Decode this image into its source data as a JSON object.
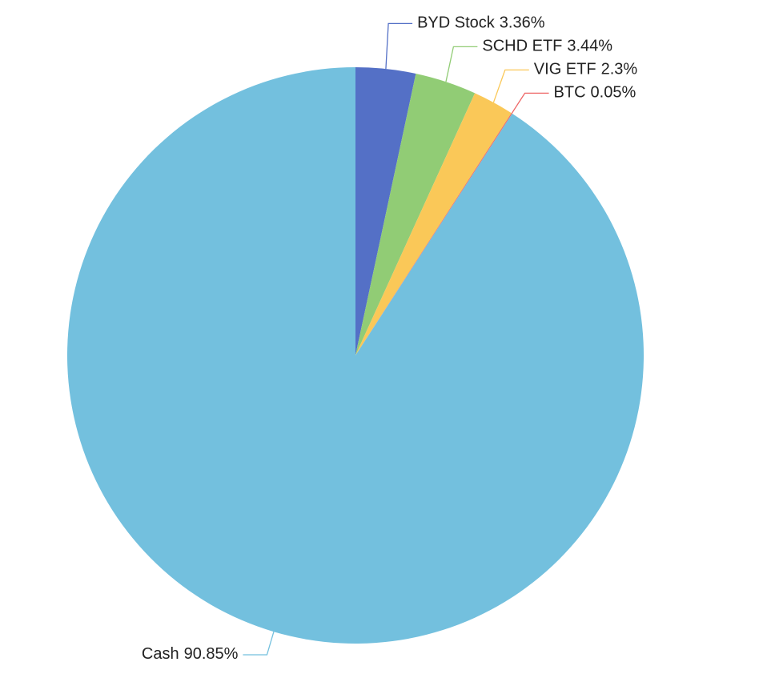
{
  "chart_data": {
    "type": "pie",
    "categories": [
      "BYD Stock",
      "SCHD ETF",
      "VIG ETF",
      "BTC",
      "Cash"
    ],
    "values": [
      3.36,
      3.44,
      2.3,
      0.05,
      90.85
    ],
    "value_labels": [
      "3.36%",
      "3.44%",
      "2.3%",
      "0.05%",
      "90.85%"
    ],
    "colors": [
      "#5470c6",
      "#91cc75",
      "#fac858",
      "#ee6666",
      "#73c0de"
    ]
  }
}
